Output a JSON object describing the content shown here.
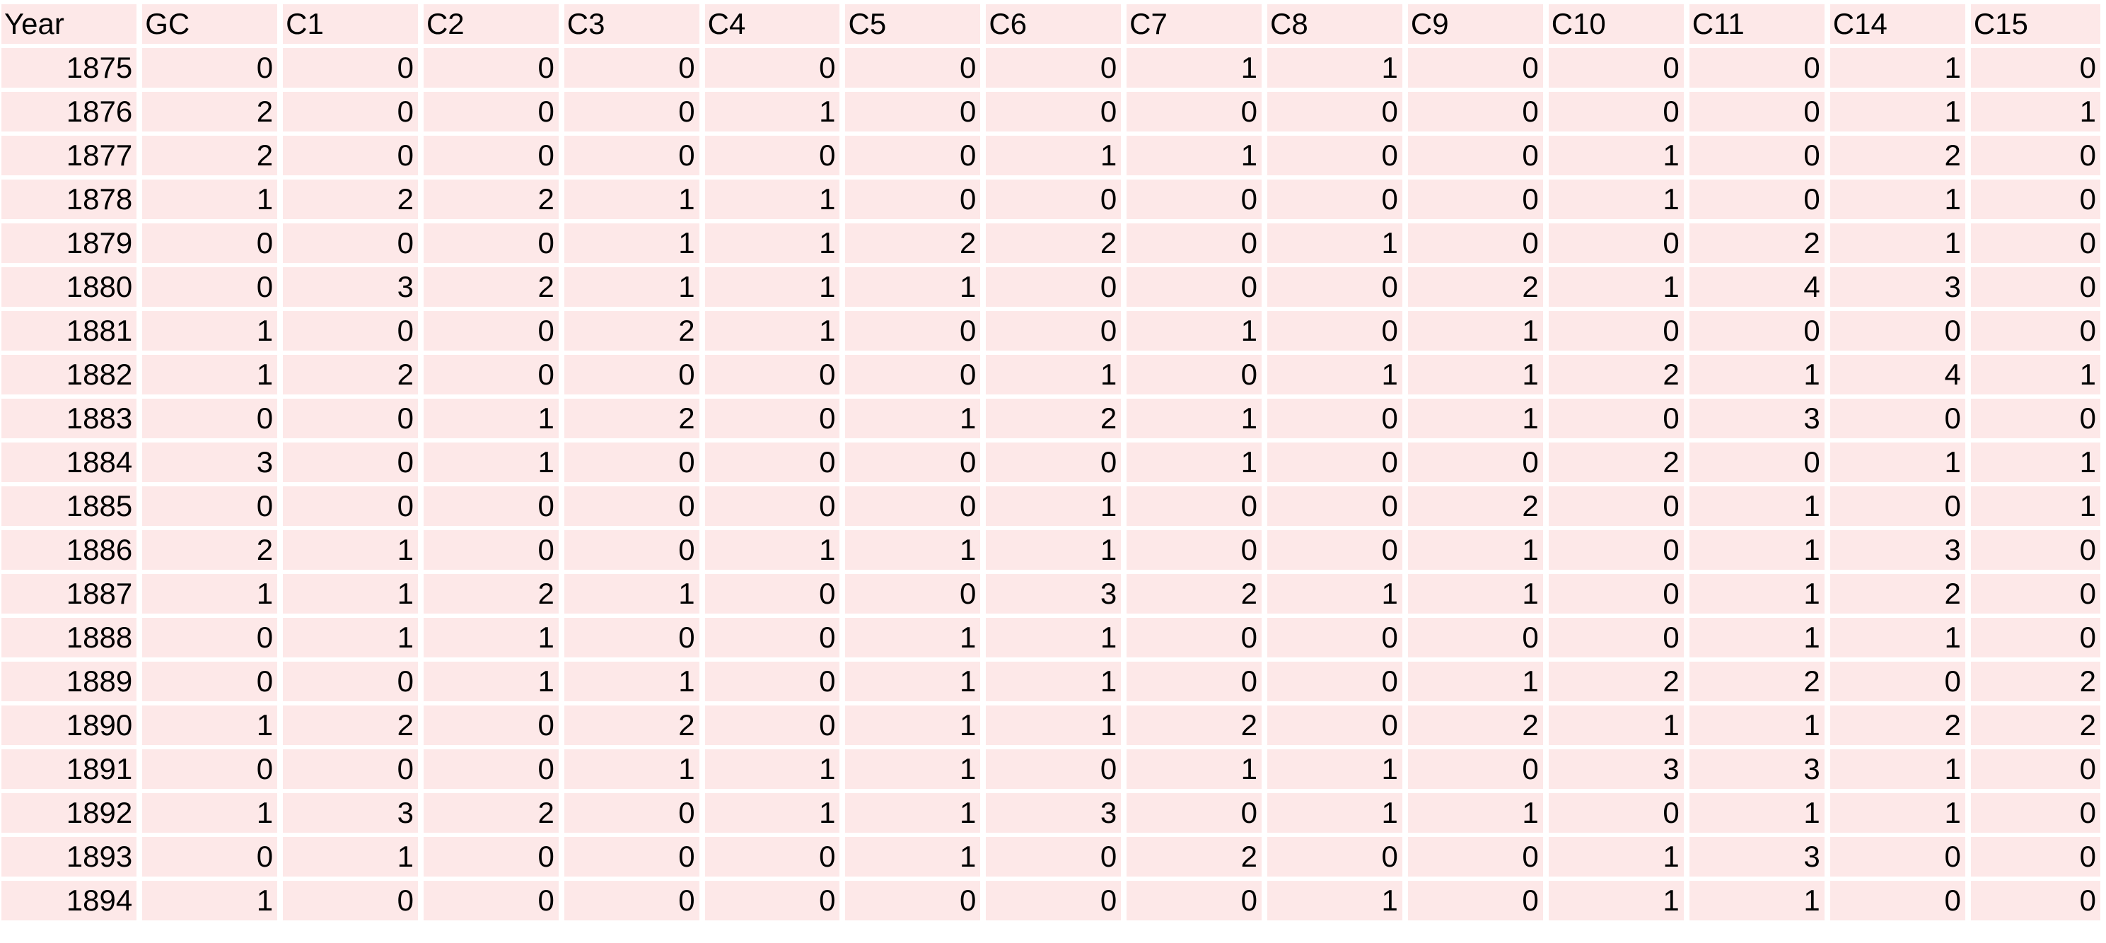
{
  "table": {
    "headers": [
      "Year",
      "GC",
      "C1",
      "C2",
      "C3",
      "C4",
      "C5",
      "C6",
      "C7",
      "C8",
      "C9",
      "C10",
      "C11",
      "C14",
      "C15"
    ],
    "rows": [
      [
        "1875",
        "0",
        "0",
        "0",
        "0",
        "0",
        "0",
        "0",
        "1",
        "1",
        "0",
        "0",
        "0",
        "1",
        "0"
      ],
      [
        "1876",
        "2",
        "0",
        "0",
        "0",
        "1",
        "0",
        "0",
        "0",
        "0",
        "0",
        "0",
        "0",
        "1",
        "1"
      ],
      [
        "1877",
        "2",
        "0",
        "0",
        "0",
        "0",
        "0",
        "1",
        "1",
        "0",
        "0",
        "1",
        "0",
        "2",
        "0"
      ],
      [
        "1878",
        "1",
        "2",
        "2",
        "1",
        "1",
        "0",
        "0",
        "0",
        "0",
        "0",
        "1",
        "0",
        "1",
        "0"
      ],
      [
        "1879",
        "0",
        "0",
        "0",
        "1",
        "1",
        "2",
        "2",
        "0",
        "1",
        "0",
        "0",
        "2",
        "1",
        "0"
      ],
      [
        "1880",
        "0",
        "3",
        "2",
        "1",
        "1",
        "1",
        "0",
        "0",
        "0",
        "2",
        "1",
        "4",
        "3",
        "0"
      ],
      [
        "1881",
        "1",
        "0",
        "0",
        "2",
        "1",
        "0",
        "0",
        "1",
        "0",
        "1",
        "0",
        "0",
        "0",
        "0"
      ],
      [
        "1882",
        "1",
        "2",
        "0",
        "0",
        "0",
        "0",
        "1",
        "0",
        "1",
        "1",
        "2",
        "1",
        "4",
        "1"
      ],
      [
        "1883",
        "0",
        "0",
        "1",
        "2",
        "0",
        "1",
        "2",
        "1",
        "0",
        "1",
        "0",
        "3",
        "0",
        "0"
      ],
      [
        "1884",
        "3",
        "0",
        "1",
        "0",
        "0",
        "0",
        "0",
        "1",
        "0",
        "0",
        "2",
        "0",
        "1",
        "1"
      ],
      [
        "1885",
        "0",
        "0",
        "0",
        "0",
        "0",
        "0",
        "1",
        "0",
        "0",
        "2",
        "0",
        "1",
        "0",
        "1"
      ],
      [
        "1886",
        "2",
        "1",
        "0",
        "0",
        "1",
        "1",
        "1",
        "0",
        "0",
        "1",
        "0",
        "1",
        "3",
        "0"
      ],
      [
        "1887",
        "1",
        "1",
        "2",
        "1",
        "0",
        "0",
        "3",
        "2",
        "1",
        "1",
        "0",
        "1",
        "2",
        "0"
      ],
      [
        "1888",
        "0",
        "1",
        "1",
        "0",
        "0",
        "1",
        "1",
        "0",
        "0",
        "0",
        "0",
        "1",
        "1",
        "0"
      ],
      [
        "1889",
        "0",
        "0",
        "1",
        "1",
        "0",
        "1",
        "1",
        "0",
        "0",
        "1",
        "2",
        "2",
        "0",
        "2"
      ],
      [
        "1890",
        "1",
        "2",
        "0",
        "2",
        "0",
        "1",
        "1",
        "2",
        "0",
        "2",
        "1",
        "1",
        "2",
        "2"
      ],
      [
        "1891",
        "0",
        "0",
        "0",
        "1",
        "1",
        "1",
        "0",
        "1",
        "1",
        "0",
        "3",
        "3",
        "1",
        "0"
      ],
      [
        "1892",
        "1",
        "3",
        "2",
        "0",
        "1",
        "1",
        "3",
        "0",
        "1",
        "1",
        "0",
        "1",
        "1",
        "0"
      ],
      [
        "1893",
        "0",
        "1",
        "0",
        "0",
        "0",
        "1",
        "0",
        "2",
        "0",
        "0",
        "1",
        "3",
        "0",
        "0"
      ],
      [
        "1894",
        "1",
        "0",
        "0",
        "0",
        "0",
        "0",
        "0",
        "0",
        "1",
        "0",
        "1",
        "1",
        "0",
        "0"
      ]
    ]
  },
  "colors": {
    "cell_background": "#fde8e8",
    "page_background": "#ffffff",
    "text": "#000000"
  }
}
